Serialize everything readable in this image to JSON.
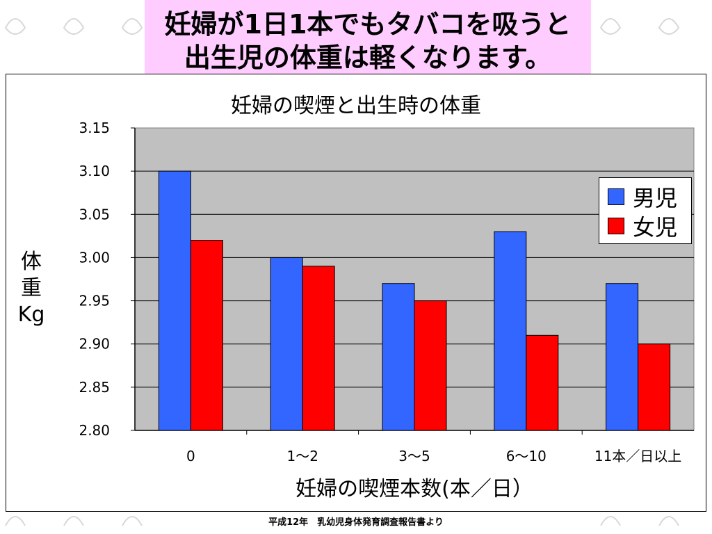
{
  "headline": {
    "line1": "妊婦が1日1本でもタバコを吸うと",
    "line2": "出生児の体重は軽くなります。"
  },
  "footer": "平成12年　乳幼児身体発育調査報告書より",
  "colors": {
    "male": "#3366ff",
    "female": "#ff0000",
    "plot_bg": "#c0c0c0",
    "title_bg": "#ffccff"
  },
  "chart_data": {
    "type": "bar",
    "title": "妊婦の喫煙と出生時の体重",
    "xlabel": "妊婦の喫煙本数(本／日）",
    "ylabel_chars": [
      "体",
      "重",
      "Kg"
    ],
    "categories": [
      "0",
      "1～2",
      "3～5",
      "6～10",
      "11本／日以上"
    ],
    "series": [
      {
        "name": "男児",
        "color": "#3366ff",
        "values": [
          3.1,
          3.0,
          2.97,
          3.03,
          2.97
        ]
      },
      {
        "name": "女児",
        "color": "#ff0000",
        "values": [
          3.02,
          2.99,
          2.95,
          2.91,
          2.9
        ]
      }
    ],
    "ylim": [
      2.8,
      3.15
    ],
    "yticks": [
      "3.15",
      "3.10",
      "3.05",
      "3.00",
      "2.95",
      "2.90",
      "2.85",
      "2.80"
    ],
    "grid": true,
    "legend": "right"
  }
}
